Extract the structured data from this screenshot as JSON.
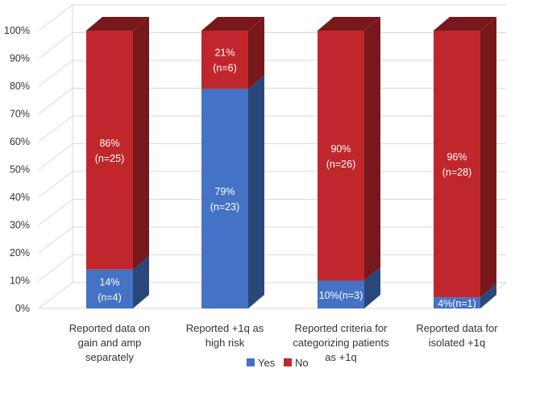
{
  "chart_data": {
    "type": "bar",
    "stacked": true,
    "three_d": true,
    "categories": [
      [
        "Reported data on",
        "gain and amp",
        "separately"
      ],
      [
        "Reported +1q as",
        "high risk"
      ],
      [
        "Reported criteria for",
        "categorizing patients",
        "as +1q"
      ],
      [
        "Reported data for",
        "isolated +1q"
      ]
    ],
    "series": [
      {
        "name": "Yes",
        "color": "#4472C4",
        "values": [
          14,
          79,
          10,
          4
        ]
      },
      {
        "name": "No",
        "color": "#C0272D",
        "values": [
          86,
          21,
          90,
          96
        ]
      }
    ],
    "data_labels": {
      "Yes": [
        [
          "14%",
          "(n=4)"
        ],
        [
          "79%",
          "(n=23)"
        ],
        [
          "10%(n=3)"
        ],
        [
          "4%(n=1)"
        ]
      ],
      "No": [
        [
          "86%",
          "(n=25)"
        ],
        [
          "21%",
          "(n=6)"
        ],
        [
          "90%",
          "(n=26)"
        ],
        [
          "96%",
          "(n=28)"
        ]
      ]
    },
    "y_ticks": [
      "0%",
      "10%",
      "20%",
      "30%",
      "40%",
      "50%",
      "60%",
      "70%",
      "80%",
      "90%",
      "100%"
    ],
    "ylim": [
      0,
      100
    ],
    "grid": true,
    "legend": {
      "position": "bottom",
      "entries": [
        "Yes",
        "No"
      ]
    }
  }
}
